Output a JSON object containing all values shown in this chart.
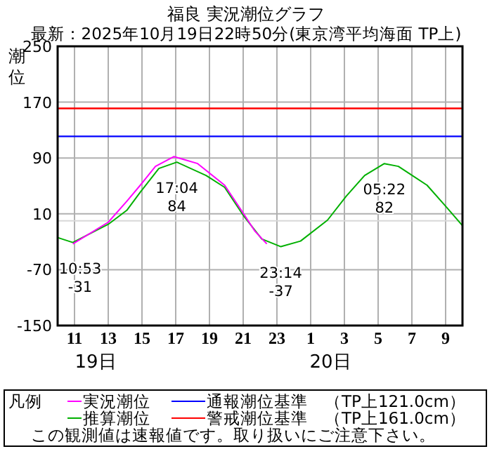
{
  "chart_data": {
    "type": "line",
    "title": "福良 実況潮位グラフ",
    "subtitle": "最新：2025年10月19日22時50分(東京湾平均海面 TP上)",
    "ylabel": "潮位",
    "legend_title": "凡例",
    "legend": "bottom",
    "grid": true,
    "marker": "none",
    "line_style": "solid",
    "xlim": [
      "2025-10-19T10:00",
      "2025-10-20T10:00"
    ],
    "xticks": [
      {
        "value": "2025-10-19T11:00",
        "label": "11"
      },
      {
        "value": "2025-10-19T13:00",
        "label": "13"
      },
      {
        "value": "2025-10-19T15:00",
        "label": "15"
      },
      {
        "value": "2025-10-19T17:00",
        "label": "17"
      },
      {
        "value": "2025-10-19T19:00",
        "label": "19"
      },
      {
        "value": "2025-10-19T21:00",
        "label": "21"
      },
      {
        "value": "2025-10-19T23:00",
        "label": "23"
      },
      {
        "value": "2025-10-20T01:00",
        "label": "1"
      },
      {
        "value": "2025-10-20T03:00",
        "label": "3"
      },
      {
        "value": "2025-10-20T05:00",
        "label": "5"
      },
      {
        "value": "2025-10-20T07:00",
        "label": "7"
      },
      {
        "value": "2025-10-20T09:00",
        "label": "9"
      }
    ],
    "ylim": [
      -150,
      250
    ],
    "yticks": [
      -150,
      -70,
      10,
      90,
      170,
      250
    ],
    "series": [
      {
        "name": "推算潮位",
        "color": "#00b000",
        "x": [
          "2025-10-19T10:00",
          "2025-10-19T10:54",
          "2025-10-19T13:00",
          "2025-10-19T14:06",
          "2025-10-19T14:54",
          "2025-10-19T16:00",
          "2025-10-19T17:04",
          "2025-10-19T18:48",
          "2025-10-19T19:54",
          "2025-10-19T21:00",
          "2025-10-19T22:06",
          "2025-10-19T23:14",
          "2025-10-20T00:24",
          "2025-10-20T02:00",
          "2025-10-20T03:06",
          "2025-10-20T04:12",
          "2025-10-20T05:22",
          "2025-10-20T06:12",
          "2025-10-20T07:54",
          "2025-10-20T09:00",
          "2025-10-20T10:00"
        ],
        "values": [
          -24,
          -31,
          -5,
          15,
          41,
          75,
          84,
          65,
          48,
          8,
          -26,
          -37,
          -29,
          1,
          35,
          65,
          82,
          78,
          51,
          21,
          -7
        ]
      },
      {
        "name": "実況潮位",
        "color": "#ff00ff",
        "x": [
          "2025-10-19T10:54",
          "2025-10-19T13:00",
          "2025-10-19T14:06",
          "2025-10-19T14:54",
          "2025-10-19T15:48",
          "2025-10-19T16:54",
          "2025-10-19T18:18",
          "2025-10-19T19:54",
          "2025-10-19T21:00",
          "2025-10-19T21:42",
          "2025-10-19T22:24"
        ],
        "values": [
          -33,
          -2,
          28,
          51,
          78,
          92,
          82,
          51,
          11,
          -15,
          -33
        ]
      }
    ],
    "ref_lines": [
      {
        "axis": "y",
        "value": 0,
        "color": "#d8d8d8"
      },
      {
        "axis": "y",
        "value": 121,
        "label": "通報潮位基準　（TP上121.0cm）",
        "color": "#0000ff"
      },
      {
        "axis": "y",
        "value": 161,
        "label": "警戒潮位基準　（TP上161.0cm）",
        "color": "#ff0000"
      }
    ],
    "annotations": [
      {
        "text": "10:53\n-31",
        "x": "2025-10-19T10:53",
        "y": -31
      },
      {
        "text": "17:04\n84",
        "x": "2025-10-19T17:04",
        "y": 84
      },
      {
        "text": "23:14\n-37",
        "x": "2025-10-19T23:14",
        "y": -37
      },
      {
        "text": "05:22\n82",
        "x": "2025-10-20T05:22",
        "y": 82
      },
      "19日",
      "20日",
      "この観測値は速報値です。取り扱いにご注意下さい。"
    ]
  }
}
